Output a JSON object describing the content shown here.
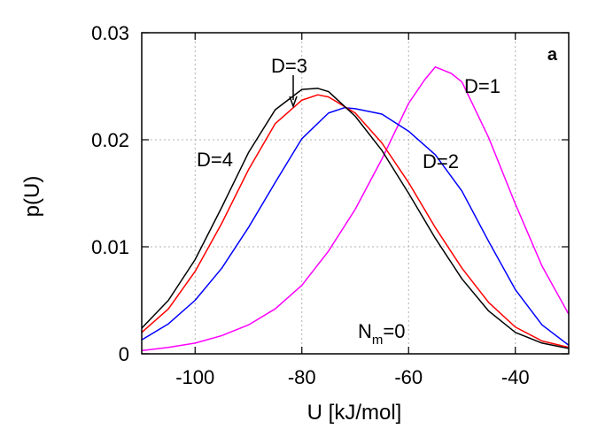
{
  "chart_data": {
    "type": "line",
    "title": "",
    "xlabel": "U [kJ/mol]",
    "ylabel": "p(U)",
    "xlim": [
      -110,
      -30
    ],
    "ylim": [
      0,
      0.03
    ],
    "grid": true,
    "x_ticks": [
      -100,
      -80,
      -60,
      -40
    ],
    "x_tick_labels": [
      "-100",
      "-80",
      "-60",
      "-40"
    ],
    "y_ticks": [
      0,
      0.01,
      0.02,
      0.03
    ],
    "y_tick_labels": [
      "0",
      "0.01",
      "0.02",
      "0.03"
    ],
    "panel_label": "a",
    "annotation": {
      "base": "N",
      "sub": "m",
      "rest": "=0"
    },
    "series": [
      {
        "name": "D=1",
        "color": "#ff00ff",
        "x": [
          -110,
          -105,
          -100,
          -95,
          -90,
          -85,
          -80,
          -75,
          -70,
          -65,
          -60,
          -57,
          -55,
          -52,
          -50,
          -45,
          -40,
          -35,
          -30
        ],
        "y": [
          0.0003,
          0.0006,
          0.001,
          0.0017,
          0.0027,
          0.0042,
          0.0064,
          0.0096,
          0.0135,
          0.0182,
          0.0234,
          0.0256,
          0.0268,
          0.0262,
          0.0254,
          0.0202,
          0.014,
          0.0082,
          0.0037
        ]
      },
      {
        "name": "D=2",
        "color": "#0000ff",
        "x": [
          -110,
          -105,
          -100,
          -95,
          -90,
          -85,
          -80,
          -75,
          -72,
          -70,
          -65,
          -60,
          -55,
          -50,
          -45,
          -40,
          -35,
          -30
        ],
        "y": [
          0.0013,
          0.0028,
          0.005,
          0.008,
          0.0118,
          0.016,
          0.0201,
          0.0225,
          0.023,
          0.0229,
          0.0224,
          0.0208,
          0.0186,
          0.0152,
          0.0105,
          0.006,
          0.0027,
          0.0008
        ]
      },
      {
        "name": "D=3",
        "color": "#ff0000",
        "x": [
          -110,
          -105,
          -100,
          -95,
          -90,
          -85,
          -80,
          -77,
          -75,
          -70,
          -65,
          -60,
          -55,
          -50,
          -45,
          -40,
          -35,
          -30
        ],
        "y": [
          0.002,
          0.0042,
          0.0077,
          0.0122,
          0.0172,
          0.0215,
          0.0237,
          0.0242,
          0.024,
          0.0225,
          0.0197,
          0.016,
          0.0118,
          0.008,
          0.0048,
          0.0025,
          0.0012,
          0.0006
        ]
      },
      {
        "name": "D=4",
        "color": "#000000",
        "x": [
          -110,
          -105,
          -100,
          -95,
          -90,
          -85,
          -80,
          -77,
          -75,
          -70,
          -65,
          -60,
          -55,
          -50,
          -45,
          -40,
          -35,
          -30
        ],
        "y": [
          0.0024,
          0.005,
          0.0088,
          0.0137,
          0.0188,
          0.0228,
          0.0247,
          0.0248,
          0.0245,
          0.0222,
          0.019,
          0.015,
          0.0108,
          0.007,
          0.004,
          0.002,
          0.001,
          0.0005
        ]
      }
    ]
  }
}
